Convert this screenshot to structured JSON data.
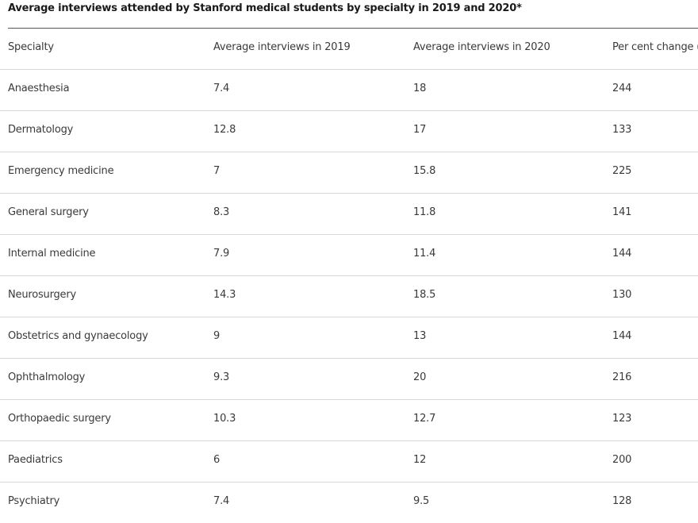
{
  "caption": "Average interviews attended by Stanford medical students by specialty in 2019 and 2020*",
  "headers": [
    "Specialty",
    "Average interviews in 2019",
    "Average interviews in 2020",
    "Per cent change (%)"
  ],
  "rows": [
    [
      "Anaesthesia",
      "7.4",
      "18",
      "244"
    ],
    [
      "Dermatology",
      "12.8",
      "17",
      "133"
    ],
    [
      "Emergency medicine",
      "7",
      "15.8",
      "225"
    ],
    [
      "General surgery",
      "8.3",
      "11.8",
      "141"
    ],
    [
      "Internal medicine",
      "7.9",
      "11.4",
      "144"
    ],
    [
      "Neurosurgery",
      "14.3",
      "18.5",
      "130"
    ],
    [
      "Obstetrics and gynaecology",
      "9",
      "13",
      "144"
    ],
    [
      "Ophthalmology",
      "9.3",
      "20",
      "216"
    ],
    [
      "Orthopaedic surgery",
      "10.3",
      "12.7",
      "123"
    ],
    [
      "Paediatrics",
      "6",
      "12",
      "200"
    ],
    [
      "Psychiatry",
      "7.4",
      "9.5",
      "128"
    ]
  ]
}
